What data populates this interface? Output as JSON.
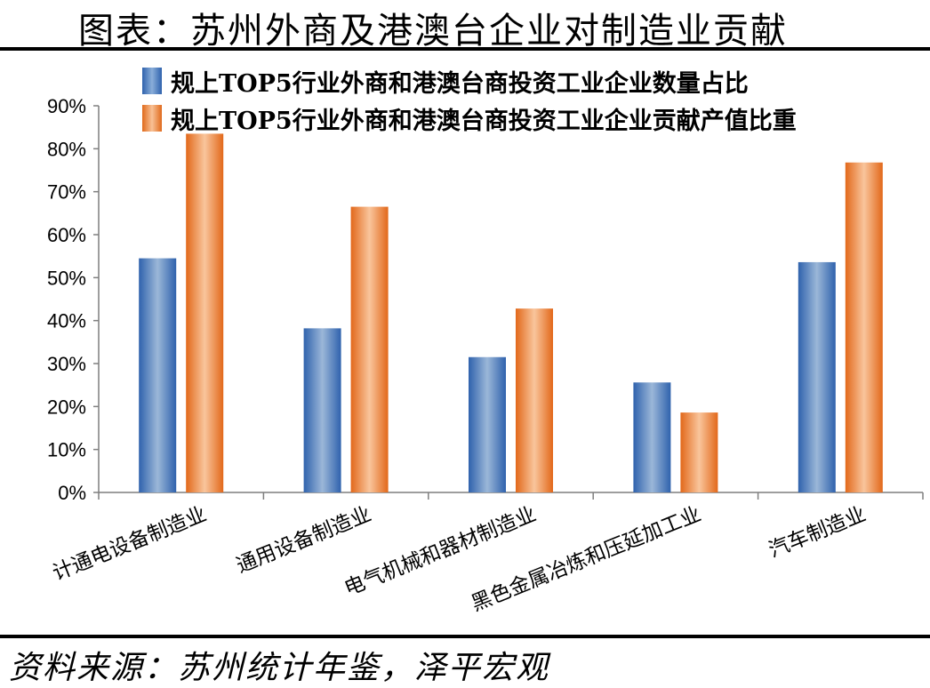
{
  "title": "图表：苏州外商及港澳台企业对制造业贡献",
  "source": "资料来源：苏州统计年鉴，泽平宏观",
  "colors": {
    "series1": "#3f73bd",
    "series2": "#ed7d31"
  },
  "chart_data": {
    "type": "bar",
    "categories": [
      "计通电设备制造业",
      "通用设备制造业",
      "电气机械和器材制造业",
      "黑色金属冶炼和压延加工业",
      "汽车制造业"
    ],
    "series": [
      {
        "name": "规上TOP5行业外商和港澳台商投资工业企业数量占比",
        "values": [
          54.5,
          38.2,
          31.5,
          25.6,
          53.6
        ]
      },
      {
        "name": "规上TOP5行业外商和港澳台商投资工业企业贡献产值比重",
        "values": [
          83.5,
          66.5,
          42.8,
          18.6,
          76.8
        ]
      }
    ],
    "yticks": [
      "0%",
      "10%",
      "20%",
      "30%",
      "40%",
      "50%",
      "60%",
      "70%",
      "80%",
      "90%"
    ],
    "ylim": [
      0,
      90
    ],
    "legend_position": "top",
    "grid": false
  }
}
